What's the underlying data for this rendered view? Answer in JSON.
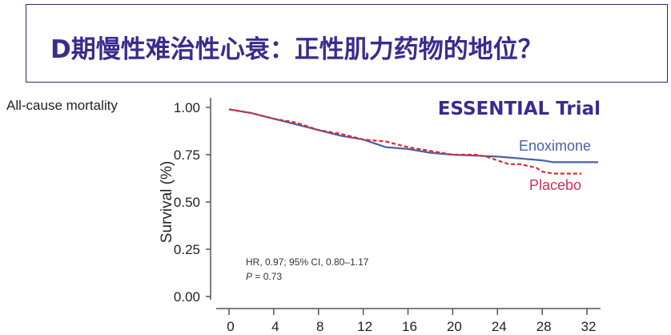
{
  "slide": {
    "title": "D期慢性难治性心衰：正性肌力药物的地位？",
    "subtitle": "All-cause mortality"
  },
  "chart_data": {
    "type": "line",
    "title": "ESSENTIAL Trial",
    "xlabel": "",
    "ylabel": "Survival (%)",
    "xlim": [
      0,
      33
    ],
    "ylim": [
      0,
      1
    ],
    "xticks": [
      "0",
      "4",
      "8",
      "12",
      "16",
      "20",
      "24",
      "28",
      "32"
    ],
    "yticks": [
      "0.00",
      "0.25",
      "0.50",
      "0.75",
      "1.00"
    ],
    "grid": false,
    "annotation": {
      "line1": "HR, 0.97; 95% CI, 0.80–1.17",
      "p_label": "P",
      "p_value": " = 0.73"
    },
    "series": [
      {
        "name": "Enoximone",
        "color": "#4a5fa8",
        "style": "solid",
        "x": [
          0,
          2,
          4,
          6,
          8,
          10,
          12,
          13,
          14,
          16,
          18,
          20,
          22,
          24,
          26,
          28,
          29,
          33
        ],
        "y": [
          0.99,
          0.97,
          0.94,
          0.91,
          0.88,
          0.85,
          0.83,
          0.81,
          0.79,
          0.78,
          0.76,
          0.75,
          0.745,
          0.74,
          0.73,
          0.72,
          0.71,
          0.71
        ]
      },
      {
        "name": "Placebo",
        "color": "#e0282e",
        "labelColor": "#d42e5a",
        "style": "dashed",
        "x": [
          0,
          2,
          4,
          6,
          8,
          10,
          12,
          14,
          16,
          18,
          20,
          22,
          23,
          24,
          25,
          26,
          27.5,
          28,
          29,
          31.5
        ],
        "y": [
          0.99,
          0.97,
          0.94,
          0.92,
          0.88,
          0.86,
          0.83,
          0.82,
          0.79,
          0.77,
          0.75,
          0.75,
          0.74,
          0.72,
          0.7,
          0.7,
          0.68,
          0.66,
          0.65,
          0.65
        ]
      }
    ]
  }
}
